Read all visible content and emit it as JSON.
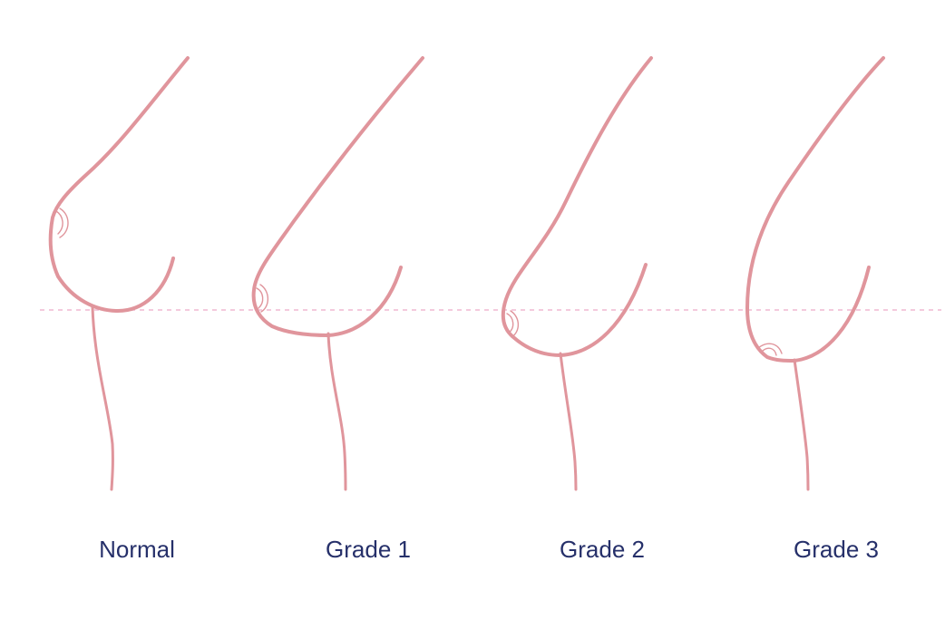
{
  "colors": {
    "outline": "#e0959c",
    "guide_line": "#f0b8d2",
    "label_text": "#26306a",
    "background": "#ffffff"
  },
  "stages": [
    {
      "label": "Normal"
    },
    {
      "label": "Grade 1"
    },
    {
      "label": "Grade 2"
    },
    {
      "label": "Grade 3"
    }
  ]
}
